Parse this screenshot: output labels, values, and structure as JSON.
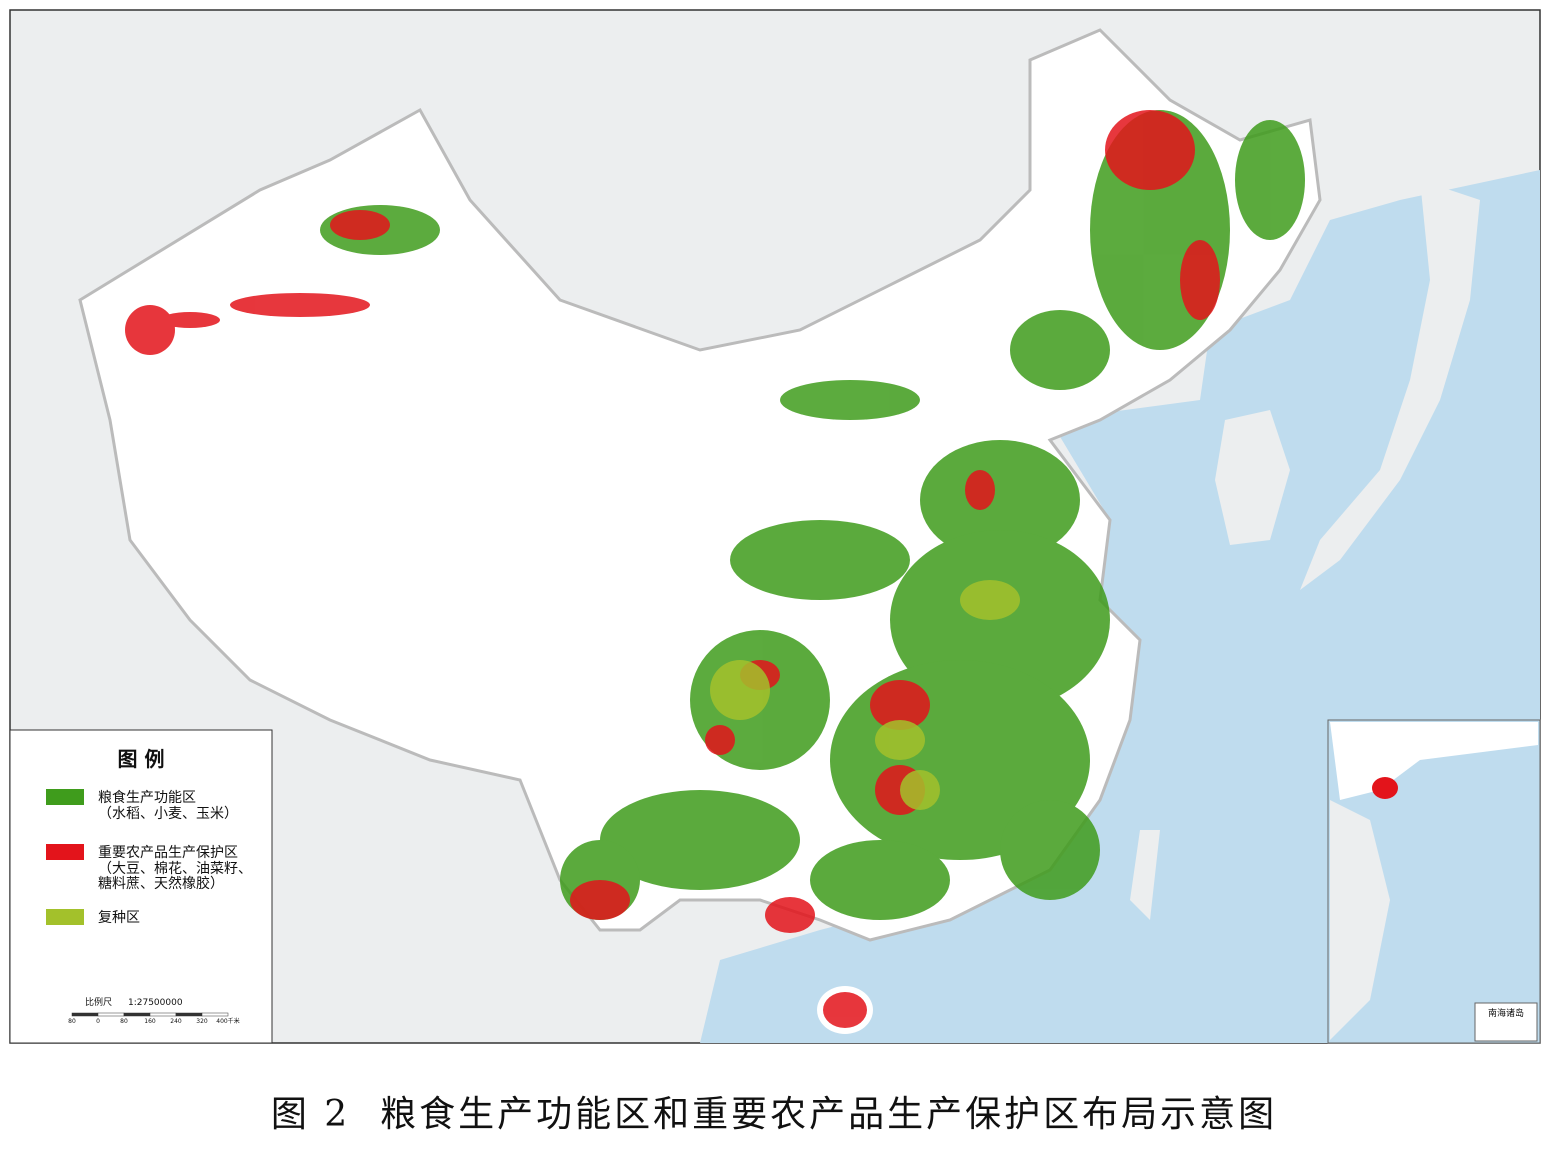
{
  "legend": {
    "title": "图 例",
    "items": [
      {
        "label": "粮食生产功能区",
        "note": [
          "（水稻、小麦、玉米）"
        ],
        "color": "#3f9c1c"
      },
      {
        "label": "重要农产品生产保护区",
        "note": [
          "（大豆、棉花、油菜籽、",
          "糖料蔗、天然橡胶）"
        ],
        "color": "#e3141b"
      },
      {
        "label": "复种区",
        "note": [],
        "color": "#a3c12b"
      }
    ]
  },
  "scale": {
    "label": "比例尺",
    "ratio": "1:27500000",
    "ticks": [
      "80",
      "0",
      "80",
      "160",
      "240",
      "320",
      "400千米"
    ]
  },
  "inset": {
    "title": "南海诸岛"
  },
  "caption": {
    "figure": "图 2",
    "title": "粮食生产功能区和重要农产品生产保护区布局示意图"
  }
}
